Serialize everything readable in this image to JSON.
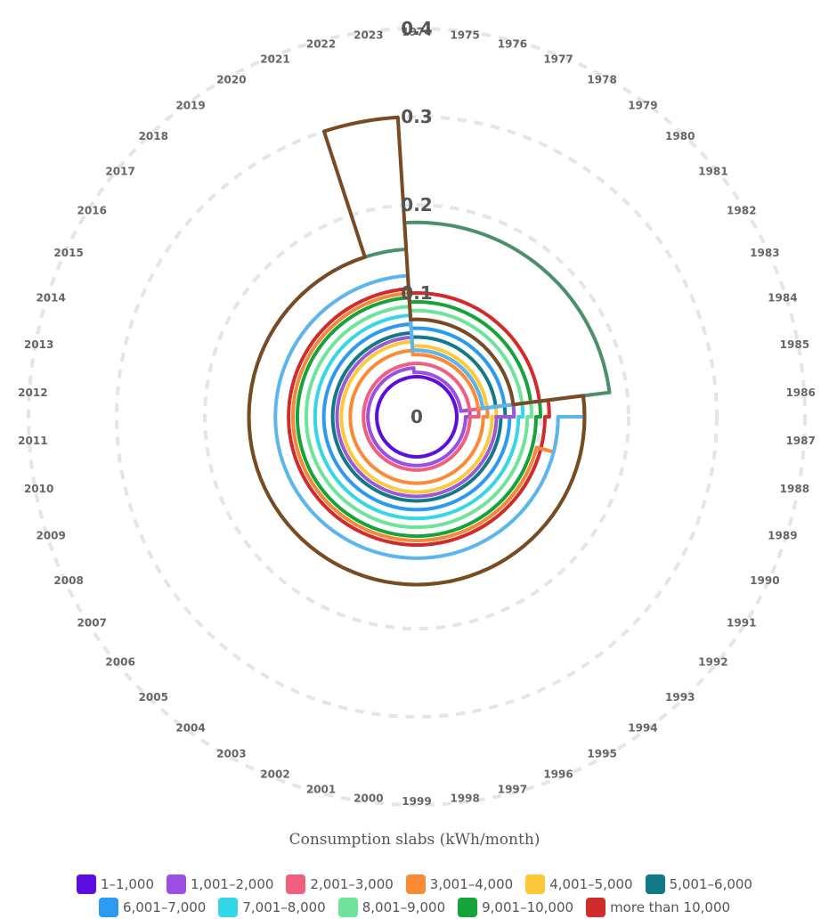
{
  "chart_data": {
    "type": "radial-step-area",
    "title": "",
    "radial_ticks": [
      "0",
      "0.1",
      "0.2",
      "0.3",
      "0.4"
    ],
    "radial_range": [
      0,
      0.4
    ],
    "categories": [
      "1974",
      "1975",
      "1976",
      "1977",
      "1978",
      "1979",
      "1980",
      "1981",
      "1982",
      "1983",
      "1984",
      "1985",
      "1986",
      "1987",
      "1988",
      "1989",
      "1990",
      "1991",
      "1992",
      "1993",
      "1994",
      "1995",
      "1996",
      "1997",
      "1998",
      "1999",
      "2000",
      "2001",
      "2002",
      "2003",
      "2004",
      "2005",
      "2006",
      "2007",
      "2008",
      "2009",
      "2010",
      "2011",
      "2012",
      "2013",
      "2014",
      "2015",
      "2016",
      "2017",
      "2018",
      "2019",
      "2020",
      "2021",
      "2022",
      "2023"
    ],
    "series": [
      {
        "name": "1–1,000",
        "color": "#5a0fe0",
        "values": [
          0.005,
          0.005,
          0.005,
          0.005,
          0.005,
          0.005,
          0.005,
          0.005,
          0.005,
          0.005,
          0.005,
          0.005,
          0.005,
          0.005,
          0.005,
          0.005,
          0.005,
          0.005,
          0.005,
          0.005,
          0.005,
          0.005,
          0.005,
          0.005,
          0.005,
          0.005,
          0.005,
          0.005,
          0.005,
          0.005,
          0.005,
          0.005,
          0.005,
          0.005,
          0.005,
          0.005,
          0.005,
          0.005,
          0.005,
          0.005,
          0.005,
          0.005,
          0.005,
          0.005,
          0.005,
          0.005,
          0.005,
          0.005,
          0.005,
          0.005
        ]
      },
      {
        "name": "1,001–2,000",
        "color": "#9b4fe3",
        "values": [
          0.01,
          0.01,
          0.01,
          0.01,
          0.01,
          0.01,
          0.01,
          0.01,
          0.01,
          0.01,
          0.01,
          0.01,
          0.02,
          0.015,
          0.015,
          0.015,
          0.015,
          0.015,
          0.015,
          0.015,
          0.015,
          0.015,
          0.015,
          0.015,
          0.015,
          0.015,
          0.015,
          0.015,
          0.015,
          0.015,
          0.015,
          0.015,
          0.015,
          0.015,
          0.015,
          0.015,
          0.015,
          0.015,
          0.015,
          0.015,
          0.015,
          0.015,
          0.015,
          0.015,
          0.015,
          0.015,
          0.015,
          0.015,
          0.015,
          0.015
        ]
      },
      {
        "name": "2,001–3,000",
        "color": "#f0607e",
        "values": [
          0.02,
          0.02,
          0.02,
          0.02,
          0.02,
          0.02,
          0.02,
          0.02,
          0.02,
          0.02,
          0.02,
          0.02,
          0.03,
          0.02,
          0.02,
          0.02,
          0.02,
          0.02,
          0.02,
          0.02,
          0.02,
          0.02,
          0.02,
          0.02,
          0.02,
          0.02,
          0.02,
          0.02,
          0.02,
          0.02,
          0.02,
          0.02,
          0.02,
          0.02,
          0.02,
          0.02,
          0.02,
          0.02,
          0.02,
          0.02,
          0.02,
          0.02,
          0.02,
          0.02,
          0.02,
          0.02,
          0.02,
          0.02,
          0.02,
          0.02
        ]
      },
      {
        "name": "3,001–4,000",
        "color": "#fb8a37",
        "values": [
          0.03,
          0.03,
          0.03,
          0.03,
          0.03,
          0.03,
          0.03,
          0.03,
          0.03,
          0.03,
          0.03,
          0.03,
          0.04,
          0.035,
          0.035,
          0.035,
          0.035,
          0.035,
          0.035,
          0.035,
          0.035,
          0.035,
          0.035,
          0.035,
          0.035,
          0.035,
          0.035,
          0.035,
          0.035,
          0.035,
          0.035,
          0.035,
          0.035,
          0.035,
          0.035,
          0.035,
          0.035,
          0.035,
          0.035,
          0.035,
          0.035,
          0.035,
          0.035,
          0.035,
          0.035,
          0.035,
          0.035,
          0.035,
          0.035,
          0.035
        ]
      },
      {
        "name": "4,001–5,000",
        "color": "#fdc839",
        "values": [
          0.04,
          0.04,
          0.04,
          0.04,
          0.04,
          0.04,
          0.04,
          0.04,
          0.04,
          0.04,
          0.04,
          0.04,
          0.05,
          0.045,
          0.045,
          0.045,
          0.045,
          0.045,
          0.045,
          0.045,
          0.045,
          0.045,
          0.045,
          0.045,
          0.045,
          0.045,
          0.045,
          0.045,
          0.045,
          0.045,
          0.045,
          0.045,
          0.045,
          0.045,
          0.045,
          0.045,
          0.045,
          0.045,
          0.045,
          0.045,
          0.045,
          0.045,
          0.045,
          0.045,
          0.045,
          0.045,
          0.045,
          0.045,
          0.045,
          0.045
        ]
      },
      {
        "name": "5,001–6,000",
        "color": "#117a86",
        "values": [
          0.05,
          0.05,
          0.05,
          0.05,
          0.05,
          0.05,
          0.05,
          0.05,
          0.05,
          0.05,
          0.05,
          0.05,
          0.06,
          0.055,
          0.055,
          0.055,
          0.055,
          0.055,
          0.055,
          0.055,
          0.055,
          0.055,
          0.055,
          0.055,
          0.055,
          0.055,
          0.055,
          0.055,
          0.055,
          0.055,
          0.055,
          0.055,
          0.055,
          0.055,
          0.055,
          0.055,
          0.055,
          0.055,
          0.055,
          0.055,
          0.055,
          0.055,
          0.055,
          0.055,
          0.055,
          0.055,
          0.055,
          0.055,
          0.055,
          0.055
        ]
      },
      {
        "name": "6,001–7,000",
        "color": "#2b9af0",
        "values": [
          0.06,
          0.06,
          0.06,
          0.06,
          0.06,
          0.06,
          0.06,
          0.06,
          0.06,
          0.06,
          0.06,
          0.06,
          0.07,
          0.065,
          0.065,
          0.065,
          0.065,
          0.065,
          0.065,
          0.065,
          0.065,
          0.065,
          0.065,
          0.065,
          0.065,
          0.065,
          0.065,
          0.065,
          0.065,
          0.065,
          0.065,
          0.065,
          0.065,
          0.065,
          0.065,
          0.065,
          0.065,
          0.065,
          0.065,
          0.065,
          0.065,
          0.065,
          0.065,
          0.065,
          0.065,
          0.065,
          0.065,
          0.065,
          0.065,
          0.065
        ]
      },
      {
        "name": "7,001–8,000",
        "color": "#34d6e8",
        "values": [
          0.07,
          0.07,
          0.07,
          0.07,
          0.07,
          0.07,
          0.07,
          0.07,
          0.07,
          0.07,
          0.07,
          0.07,
          0.08,
          0.075,
          0.075,
          0.075,
          0.075,
          0.075,
          0.075,
          0.075,
          0.075,
          0.075,
          0.075,
          0.075,
          0.075,
          0.075,
          0.075,
          0.075,
          0.075,
          0.075,
          0.075,
          0.075,
          0.075,
          0.075,
          0.075,
          0.075,
          0.075,
          0.075,
          0.075,
          0.075,
          0.075,
          0.075,
          0.075,
          0.075,
          0.075,
          0.075,
          0.075,
          0.075,
          0.075,
          0.075
        ]
      },
      {
        "name": "8,001–9,000",
        "color": "#6ee39a",
        "values": [
          0.08,
          0.08,
          0.08,
          0.08,
          0.08,
          0.08,
          0.08,
          0.08,
          0.08,
          0.08,
          0.08,
          0.08,
          0.09,
          0.085,
          0.085,
          0.085,
          0.085,
          0.085,
          0.085,
          0.085,
          0.085,
          0.085,
          0.085,
          0.085,
          0.085,
          0.085,
          0.085,
          0.085,
          0.085,
          0.085,
          0.085,
          0.085,
          0.085,
          0.085,
          0.085,
          0.085,
          0.085,
          0.085,
          0.085,
          0.085,
          0.085,
          0.085,
          0.085,
          0.085,
          0.085,
          0.085,
          0.085,
          0.085,
          0.085,
          0.085
        ]
      },
      {
        "name": "9,001–10,000",
        "color": "#15a33a",
        "values": [
          0.09,
          0.09,
          0.09,
          0.09,
          0.09,
          0.09,
          0.09,
          0.09,
          0.09,
          0.09,
          0.09,
          0.09,
          0.1,
          0.095,
          0.095,
          0.095,
          0.095,
          0.095,
          0.095,
          0.095,
          0.095,
          0.095,
          0.095,
          0.095,
          0.095,
          0.095,
          0.095,
          0.095,
          0.095,
          0.095,
          0.095,
          0.095,
          0.095,
          0.095,
          0.095,
          0.095,
          0.095,
          0.095,
          0.095,
          0.095,
          0.095,
          0.095,
          0.095,
          0.095,
          0.095,
          0.095,
          0.095,
          0.095,
          0.095,
          0.095
        ]
      },
      {
        "name": "more than 10,000",
        "color": "#d12c2c",
        "values": [
          0.1,
          0.1,
          0.1,
          0.1,
          0.1,
          0.1,
          0.1,
          0.1,
          0.1,
          0.1,
          0.1,
          0.1,
          0.11,
          0.105,
          0.105,
          0.105,
          0.105,
          0.105,
          0.105,
          0.105,
          0.105,
          0.105,
          0.105,
          0.105,
          0.105,
          0.105,
          0.105,
          0.105,
          0.105,
          0.105,
          0.105,
          0.105,
          0.105,
          0.105,
          0.105,
          0.105,
          0.105,
          0.105,
          0.105,
          0.105,
          0.105,
          0.105,
          0.105,
          0.105,
          0.105,
          0.105,
          0.105,
          0.105,
          0.105,
          0.105
        ]
      }
    ],
    "outlines": [
      {
        "color": "#9b5ad6",
        "values": [
          0.035,
          0.035,
          0.035,
          0.035,
          0.035,
          0.035,
          0.035,
          0.035,
          0.035,
          0.035,
          0.035,
          0.035,
          0.07,
          0.05,
          0.05,
          0.05,
          0.05,
          0.05,
          0.05,
          0.05,
          0.05,
          0.05,
          0.05,
          0.05,
          0.05,
          0.05,
          0.05,
          0.05,
          0.05,
          0.05,
          0.05,
          0.05,
          0.05,
          0.05,
          0.05,
          0.05,
          0.05,
          0.05,
          0.05,
          0.05,
          0.05,
          0.05,
          0.05,
          0.05,
          0.05,
          0.05,
          0.05,
          0.05,
          0.05,
          0.05
        ]
      },
      {
        "color": "#f6883a",
        "values": [
          0.035,
          0.035,
          0.035,
          0.035,
          0.035,
          0.035,
          0.035,
          0.035,
          0.035,
          0.035,
          0.035,
          0.035,
          0.15,
          0.12,
          0.12,
          0.1,
          0.1,
          0.1,
          0.1,
          0.1,
          0.1,
          0.1,
          0.1,
          0.1,
          0.1,
          0.1,
          0.1,
          0.1,
          0.1,
          0.1,
          0.1,
          0.1,
          0.1,
          0.1,
          0.1,
          0.1,
          0.1,
          0.1,
          0.1,
          0.1,
          0.1,
          0.1,
          0.1,
          0.1,
          0.1,
          0.1,
          0.1,
          0.1,
          0.1,
          0.1
        ]
      },
      {
        "color": "#5bb5ee",
        "values": [
          0.035,
          0.035,
          0.035,
          0.035,
          0.035,
          0.035,
          0.035,
          0.035,
          0.035,
          0.035,
          0.035,
          0.035,
          0.15,
          0.12,
          0.12,
          0.12,
          0.12,
          0.12,
          0.12,
          0.12,
          0.12,
          0.12,
          0.12,
          0.12,
          0.12,
          0.12,
          0.12,
          0.12,
          0.12,
          0.12,
          0.12,
          0.12,
          0.12,
          0.12,
          0.12,
          0.12,
          0.12,
          0.12,
          0.12,
          0.12,
          0.12,
          0.12,
          0.12,
          0.12,
          0.12,
          0.12,
          0.12,
          0.12,
          0.12,
          0.12
        ]
      },
      {
        "color": "#4d8f6b",
        "values": [
          0.18,
          0.18,
          0.18,
          0.18,
          0.18,
          0.18,
          0.18,
          0.18,
          0.18,
          0.18,
          0.18,
          0.18,
          0.15,
          0.15,
          0.15,
          0.15,
          0.15,
          0.15,
          0.15,
          0.15,
          0.15,
          0.15,
          0.15,
          0.15,
          0.15,
          0.15,
          0.15,
          0.15,
          0.15,
          0.15,
          0.15,
          0.15,
          0.15,
          0.15,
          0.15,
          0.15,
          0.15,
          0.15,
          0.15,
          0.15,
          0.15,
          0.15,
          0.15,
          0.15,
          0.15,
          0.15,
          0.15,
          0.15,
          0.15,
          0.15
        ]
      },
      {
        "color": "#7a4a22",
        "values": [
          0.07,
          0.07,
          0.07,
          0.07,
          0.07,
          0.07,
          0.07,
          0.07,
          0.07,
          0.07,
          0.07,
          0.07,
          0.15,
          0.15,
          0.15,
          0.15,
          0.15,
          0.15,
          0.15,
          0.15,
          0.15,
          0.15,
          0.15,
          0.15,
          0.15,
          0.15,
          0.15,
          0.15,
          0.15,
          0.15,
          0.15,
          0.15,
          0.15,
          0.15,
          0.15,
          0.15,
          0.15,
          0.15,
          0.15,
          0.15,
          0.15,
          0.15,
          0.15,
          0.15,
          0.15,
          0.15,
          0.15,
          0.15,
          0.3,
          0.3
        ]
      }
    ],
    "legend_title": "Consumption slabs (kWh/month)",
    "legend_position": "bottom",
    "grid": true
  }
}
